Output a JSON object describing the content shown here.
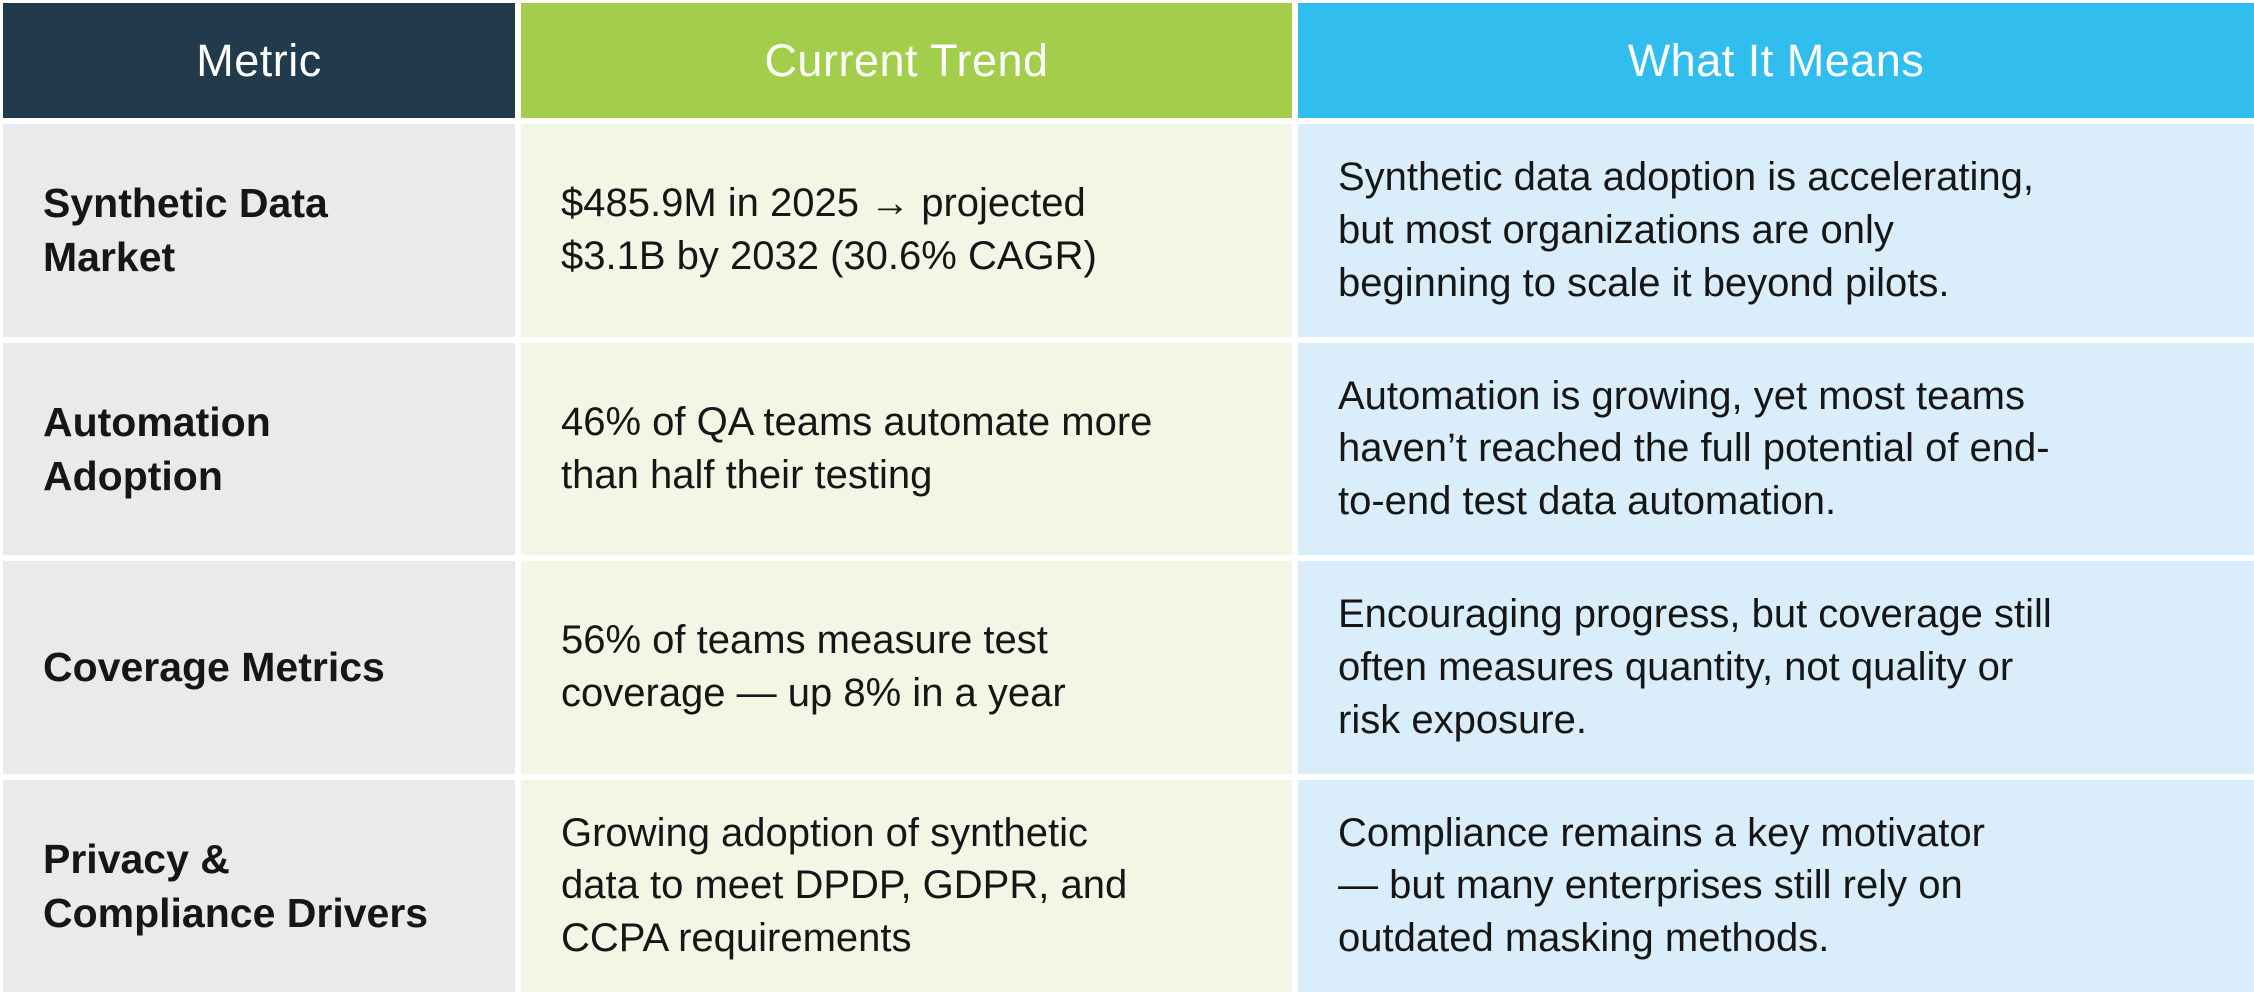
{
  "colors": {
    "header_metric_bg": "#223B4C",
    "header_trend_bg": "#A3CE4B",
    "header_meaning_bg": "#31BEEF",
    "cell_metric_bg": "#E9EAEC",
    "cell_trend_bg": "#F2F6E5",
    "cell_meaning_bg": "#D9EDFA",
    "header_text": "#FFFFFF",
    "body_text": "#161616",
    "gap_color": "#FFFFFF"
  },
  "table": {
    "header": {
      "metric": "Metric",
      "trend": "Current Trend",
      "meaning": "What It Means"
    },
    "rows": [
      {
        "metric": "Synthetic Data\nMarket",
        "trend": "$485.9M in 2025 → projected\n$3.1B by 2032 (30.6% CAGR)",
        "meaning": "Synthetic data adoption is accelerating,\nbut most organizations are only\nbeginning to scale it beyond pilots."
      },
      {
        "metric": "Automation\nAdoption",
        "trend": "46% of QA teams automate more\nthan half their testing",
        "meaning": "Automation is growing, yet most teams\nhaven’t reached the full potential of end-\nto-end test data automation."
      },
      {
        "metric": "Coverage Metrics",
        "trend": "56% of teams measure test\ncoverage — up 8% in a year",
        "meaning": "Encouraging progress, but coverage still\noften measures quantity, not quality or\nrisk exposure."
      },
      {
        "metric": "Privacy &\nCompliance Drivers",
        "trend": "Growing adoption of synthetic\ndata to meet DPDP, GDPR, and\nCCPA requirements",
        "meaning": "Compliance remains a key motivator\n— but many enterprises still rely on\noutdated masking methods."
      }
    ]
  },
  "chart_data": {
    "type": "table",
    "columns": [
      "Metric",
      "Current Trend",
      "What It Means"
    ],
    "rows": [
      [
        "Synthetic Data Market",
        "$485.9M in 2025 → projected $3.1B by 2032 (30.6% CAGR)",
        "Synthetic data adoption is accelerating, but most organizations are only beginning to scale it beyond pilots."
      ],
      [
        "Automation Adoption",
        "46% of QA teams automate more than half their testing",
        "Automation is growing, yet most teams haven’t reached the full potential of end-to-end test data automation."
      ],
      [
        "Coverage Metrics",
        "56% of teams measure test coverage — up 8% in a year",
        "Encouraging progress, but coverage still often measures quantity, not quality or risk exposure."
      ],
      [
        "Privacy & Compliance Drivers",
        "Growing adoption of synthetic data to meet DPDP, GDPR, and CCPA requirements",
        "Compliance remains a key motivator — but many enterprises still rely on outdated masking methods."
      ]
    ],
    "title": "",
    "legend_position": "none",
    "grid": false
  }
}
